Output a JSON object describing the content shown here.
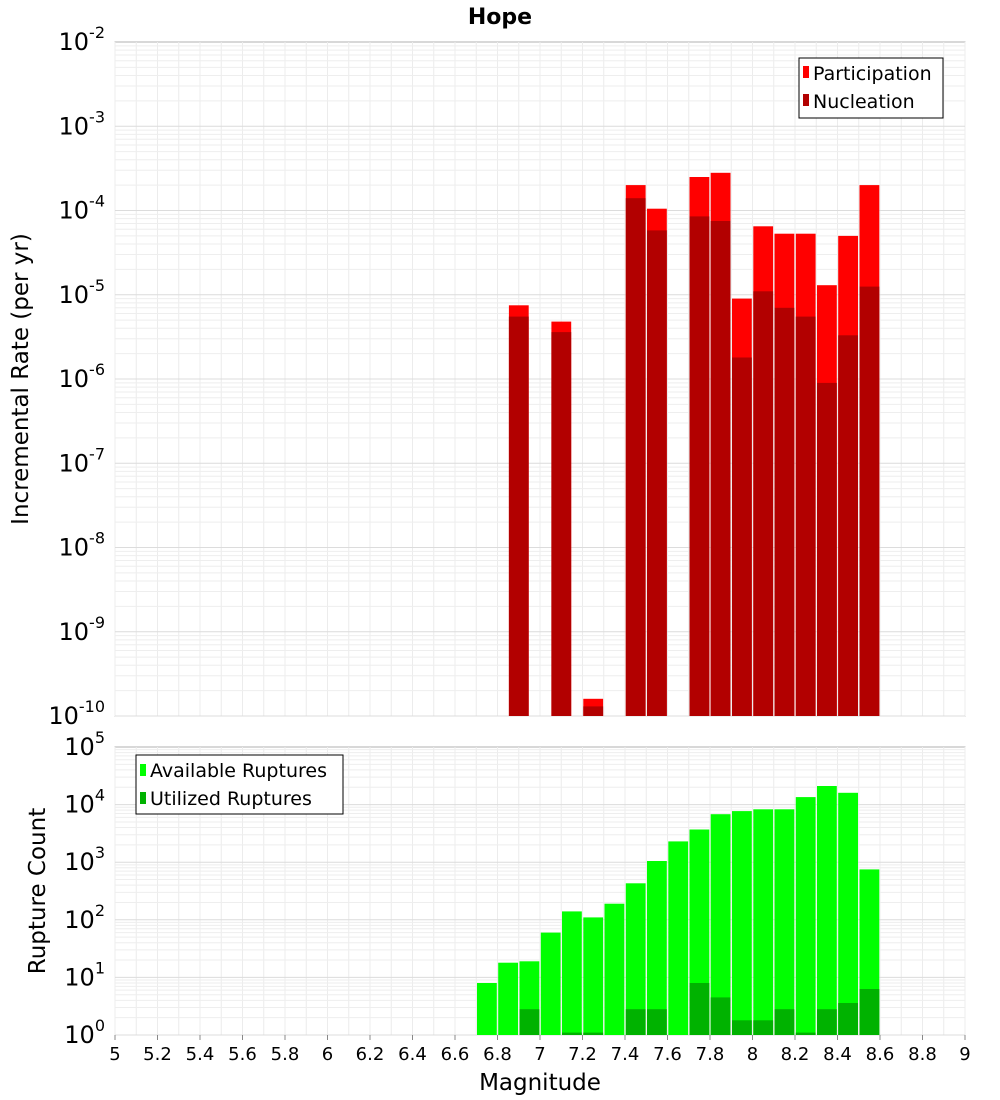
{
  "title": "Hope",
  "chart_data": [
    {
      "type": "bar",
      "scale": "log",
      "ylabel": "Incremental Rate (per yr)",
      "ylim_exponents": [
        -10,
        -2
      ],
      "y_tick_labels": [
        "10^-10",
        "10^-9",
        "10^-8",
        "10^-7",
        "10^-6",
        "10^-5",
        "10^-4",
        "10^-3",
        "10^-2"
      ],
      "legend": {
        "placement": "top-right",
        "entries": [
          "Participation",
          "Nucleation"
        ]
      },
      "colors": {
        "participation": "#ff0000",
        "nucleation": "#b20000"
      },
      "x": [
        6.9,
        7.1,
        7.25,
        7.45,
        7.55,
        7.75,
        7.85,
        7.95,
        8.05,
        8.15,
        8.25,
        8.35,
        8.45,
        8.55
      ],
      "series": [
        {
          "name": "Participation",
          "values": [
            7.5e-06,
            4.8e-06,
            1.6e-10,
            0.0002,
            0.000105,
            0.00025,
            0.00028,
            9e-06,
            6.5e-05,
            5.3e-05,
            5.3e-05,
            1.3e-05,
            5e-05,
            0.0002
          ]
        },
        {
          "name": "Nucleation",
          "values": [
            5.5e-06,
            3.6e-06,
            1.3e-10,
            0.00014,
            5.8e-05,
            8.5e-05,
            7.5e-05,
            1.8e-06,
            1.1e-05,
            7e-06,
            5.5e-06,
            9e-07,
            3.3e-06,
            1.25e-05
          ]
        }
      ]
    },
    {
      "type": "bar",
      "scale": "log",
      "ylabel": "Rupture Count",
      "xlabel": "Magnitude",
      "ylim_exponents": [
        0,
        5
      ],
      "y_tick_labels": [
        "10^0",
        "10^1",
        "10^2",
        "10^3",
        "10^4",
        "10^5"
      ],
      "legend": {
        "placement": "top-left",
        "entries": [
          "Available Ruptures",
          "Utilized Ruptures"
        ]
      },
      "colors": {
        "available": "#00ff00",
        "utilized": "#00b200"
      },
      "x": [
        6.75,
        6.85,
        6.95,
        7.05,
        7.15,
        7.25,
        7.35,
        7.45,
        7.55,
        7.65,
        7.75,
        7.85,
        7.95,
        8.05,
        8.15,
        8.25,
        8.35,
        8.45,
        8.55
      ],
      "series": [
        {
          "name": "Available Ruptures",
          "values": [
            8,
            18,
            19,
            60,
            140,
            110,
            190,
            430,
            1050,
            2300,
            3700,
            6800,
            7700,
            8300,
            8300,
            13500,
            21000,
            16000,
            750
          ]
        },
        {
          "name": "Utilized Ruptures",
          "values": [
            0,
            0,
            2.8,
            0,
            1.1,
            1.1,
            0,
            2.8,
            2.8,
            0,
            8,
            4.5,
            1.8,
            1.8,
            2.8,
            1.1,
            2.8,
            3.6,
            6.3
          ]
        }
      ]
    }
  ],
  "x_axis": {
    "label": "Magnitude",
    "range": [
      5,
      9
    ],
    "tick_labels": [
      "5",
      "5.2",
      "5.4",
      "5.6",
      "5.8",
      "6",
      "6.2",
      "6.4",
      "6.6",
      "6.8",
      "7",
      "7.2",
      "7.4",
      "7.6",
      "7.8",
      "8",
      "8.2",
      "8.4",
      "8.6",
      "8.8",
      "9"
    ]
  }
}
